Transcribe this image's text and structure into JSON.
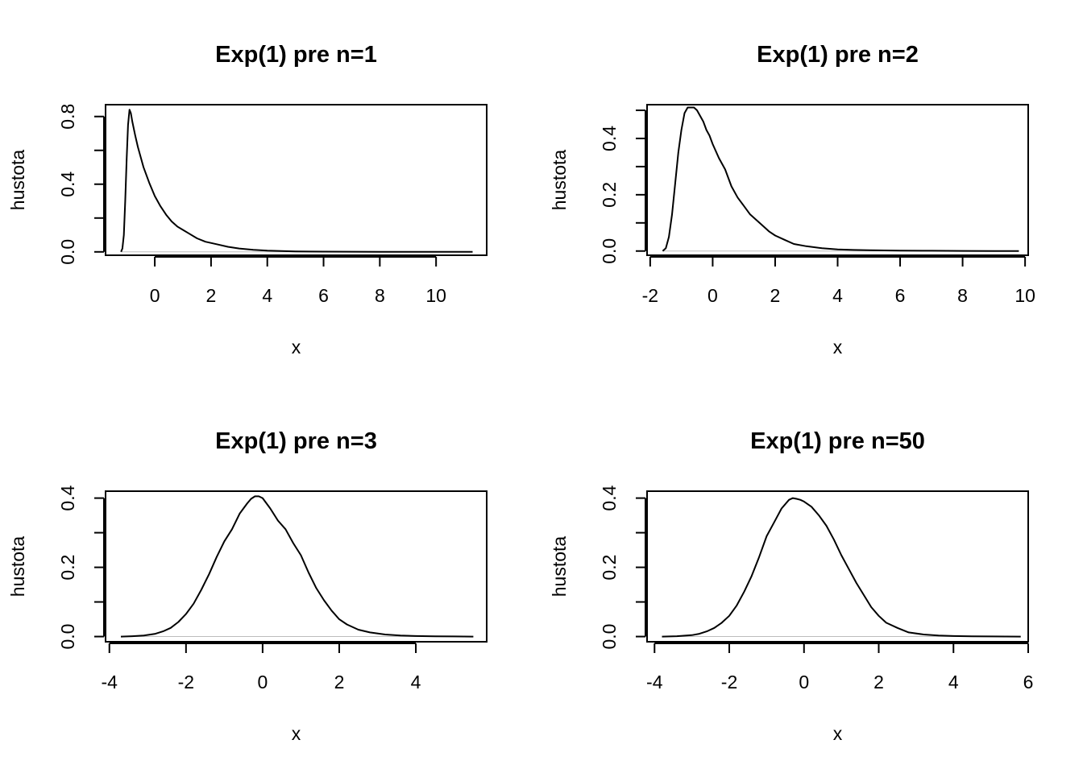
{
  "chart_data": [
    {
      "type": "line",
      "title": "Exp(1) pre n=1",
      "xlabel": "x",
      "ylabel": "hustota",
      "xlim": [
        -1.75,
        11.8
      ],
      "ylim": [
        -0.02,
        0.87
      ],
      "xticks": [
        0,
        2,
        4,
        6,
        8,
        10
      ],
      "yticks": [
        0.0,
        0.2,
        0.4,
        0.6,
        0.8
      ],
      "ytick_labels": [
        "0.0",
        "",
        "0.4",
        "",
        "0.8"
      ],
      "grid": false,
      "series": [
        {
          "x": [
            -1.2,
            -1.15,
            -1.1,
            -1.05,
            -1.0,
            -0.95,
            -0.9,
            -0.85,
            -0.8,
            -0.7,
            -0.6,
            -0.5,
            -0.4,
            -0.2,
            0.0,
            0.2,
            0.4,
            0.6,
            0.8,
            1.0,
            1.2,
            1.5,
            1.8,
            2.2,
            2.6,
            3.0,
            3.5,
            4.0,
            5.0,
            6.0,
            7.0,
            8.0,
            9.0,
            10.0,
            11.3
          ],
          "y": [
            0.0,
            0.02,
            0.1,
            0.3,
            0.55,
            0.75,
            0.84,
            0.82,
            0.77,
            0.69,
            0.62,
            0.56,
            0.5,
            0.41,
            0.33,
            0.27,
            0.22,
            0.18,
            0.15,
            0.13,
            0.11,
            0.08,
            0.06,
            0.045,
            0.03,
            0.02,
            0.012,
            0.007,
            0.003,
            0.0015,
            0.001,
            0.0005,
            0.0003,
            0.0002,
            0.0
          ]
        }
      ]
    },
    {
      "type": "line",
      "title": "Exp(1) pre n=2",
      "xlabel": "x",
      "ylabel": "hustota",
      "xlim": [
        -2.1,
        10.1
      ],
      "ylim": [
        -0.015,
        0.52
      ],
      "xticks": [
        -2,
        0,
        2,
        4,
        6,
        8,
        10
      ],
      "yticks": [
        0.0,
        0.1,
        0.2,
        0.3,
        0.4,
        0.5
      ],
      "ytick_labels": [
        "0.0",
        "",
        "0.2",
        "",
        "0.4",
        ""
      ],
      "grid": false,
      "series": [
        {
          "x": [
            -1.6,
            -1.5,
            -1.4,
            -1.3,
            -1.2,
            -1.1,
            -1.0,
            -0.9,
            -0.8,
            -0.7,
            -0.6,
            -0.5,
            -0.4,
            -0.3,
            -0.2,
            -0.1,
            0.0,
            0.2,
            0.4,
            0.6,
            0.8,
            1.0,
            1.2,
            1.4,
            1.6,
            1.8,
            2.0,
            2.3,
            2.6,
            3.0,
            3.5,
            4.0,
            4.5,
            5.0,
            6.0,
            7.0,
            8.0,
            9.0,
            9.8
          ],
          "y": [
            0.0,
            0.01,
            0.05,
            0.13,
            0.24,
            0.35,
            0.43,
            0.49,
            0.51,
            0.51,
            0.51,
            0.5,
            0.48,
            0.46,
            0.43,
            0.41,
            0.38,
            0.33,
            0.29,
            0.23,
            0.19,
            0.16,
            0.13,
            0.11,
            0.09,
            0.07,
            0.055,
            0.04,
            0.025,
            0.017,
            0.01,
            0.006,
            0.004,
            0.003,
            0.0015,
            0.001,
            0.0005,
            0.0003,
            0.0
          ]
        }
      ]
    },
    {
      "type": "line",
      "title": "Exp(1) pre n=3",
      "xlabel": "x",
      "ylabel": "hustota",
      "xlim": [
        -4.1,
        5.85
      ],
      "ylim": [
        -0.015,
        0.42
      ],
      "xticks": [
        -4,
        -2,
        0,
        2,
        4
      ],
      "yticks": [
        0.0,
        0.1,
        0.2,
        0.3,
        0.4
      ],
      "ytick_labels": [
        "0.0",
        "",
        "0.2",
        "",
        "0.4"
      ],
      "grid": false,
      "series": [
        {
          "x": [
            -3.7,
            -3.4,
            -3.1,
            -2.8,
            -2.6,
            -2.4,
            -2.2,
            -2.0,
            -1.8,
            -1.6,
            -1.4,
            -1.2,
            -1.0,
            -0.8,
            -0.6,
            -0.5,
            -0.4,
            -0.3,
            -0.2,
            -0.1,
            0.0,
            0.2,
            0.4,
            0.6,
            0.8,
            1.0,
            1.2,
            1.4,
            1.6,
            1.8,
            2.0,
            2.2,
            2.5,
            2.8,
            3.2,
            3.6,
            4.0,
            4.5,
            5.0,
            5.5
          ],
          "y": [
            0.0,
            0.001,
            0.003,
            0.008,
            0.015,
            0.025,
            0.042,
            0.065,
            0.095,
            0.135,
            0.18,
            0.23,
            0.275,
            0.31,
            0.355,
            0.37,
            0.385,
            0.398,
            0.405,
            0.405,
            0.4,
            0.37,
            0.335,
            0.31,
            0.27,
            0.235,
            0.185,
            0.14,
            0.105,
            0.075,
            0.05,
            0.035,
            0.02,
            0.012,
            0.006,
            0.003,
            0.0015,
            0.0008,
            0.0004,
            0.0
          ]
        }
      ]
    },
    {
      "type": "line",
      "title": "Exp(1) pre n=50",
      "xlabel": "x",
      "ylabel": "hustota",
      "xlim": [
        -4.2,
        6.0
      ],
      "ylim": [
        -0.015,
        0.42
      ],
      "xticks": [
        -4,
        -2,
        0,
        2,
        4,
        6
      ],
      "yticks": [
        0.0,
        0.1,
        0.2,
        0.3,
        0.4
      ],
      "ytick_labels": [
        "0.0",
        "",
        "0.2",
        "",
        "0.4"
      ],
      "grid": false,
      "series": [
        {
          "x": [
            -3.8,
            -3.4,
            -3.0,
            -2.8,
            -2.6,
            -2.4,
            -2.2,
            -2.0,
            -1.8,
            -1.6,
            -1.4,
            -1.2,
            -1.0,
            -0.8,
            -0.6,
            -0.4,
            -0.3,
            -0.2,
            -0.1,
            0.0,
            0.2,
            0.4,
            0.6,
            0.8,
            1.0,
            1.2,
            1.4,
            1.6,
            1.8,
            2.0,
            2.2,
            2.5,
            2.8,
            3.2,
            3.6,
            4.0,
            4.5,
            5.0,
            5.8
          ],
          "y": [
            0.0,
            0.001,
            0.004,
            0.008,
            0.015,
            0.025,
            0.04,
            0.06,
            0.09,
            0.13,
            0.175,
            0.23,
            0.29,
            0.33,
            0.37,
            0.395,
            0.4,
            0.398,
            0.395,
            0.39,
            0.375,
            0.35,
            0.32,
            0.28,
            0.235,
            0.195,
            0.155,
            0.12,
            0.085,
            0.06,
            0.04,
            0.025,
            0.012,
            0.006,
            0.003,
            0.0015,
            0.0008,
            0.0004,
            0.0
          ]
        }
      ]
    }
  ]
}
